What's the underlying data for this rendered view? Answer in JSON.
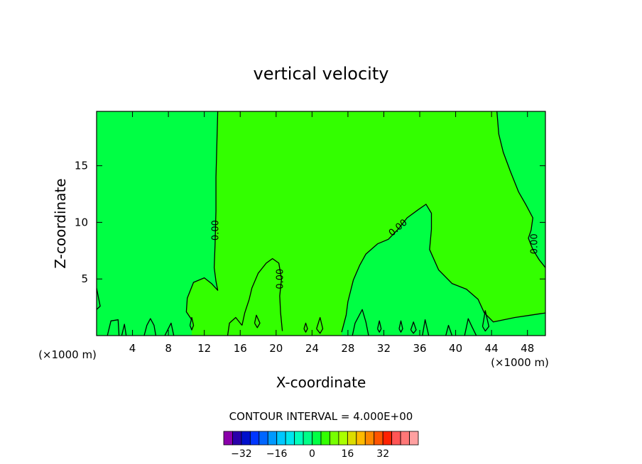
{
  "chart_data": {
    "type": "contour",
    "title": "vertical velocity",
    "xlabel": "X-coordinate",
    "ylabel": "Z-coordinate",
    "x_unit_left": "(×1000 m)",
    "x_unit_right": "(×1000 m)",
    "xlim": [
      0,
      50
    ],
    "ylim": [
      0,
      19.8
    ],
    "x_ticks": [
      4,
      8,
      12,
      16,
      20,
      24,
      28,
      32,
      36,
      40,
      44,
      48
    ],
    "y_ticks": [
      5,
      10,
      15
    ],
    "contour_label": "0.00",
    "contour_interval_text": "CONTOUR INTERVAL = 4.000E+00",
    "colors": {
      "positive_fill": "#33ff00",
      "negative_fill": "#00ff44",
      "contour_line": "#000000"
    },
    "zero_contours": [
      {
        "points": [
          [
            13.5,
            19.8
          ],
          [
            13.3,
            14
          ],
          [
            13.3,
            11
          ],
          [
            13.2,
            8
          ],
          [
            13.1,
            6
          ],
          [
            13.3,
            4.8
          ],
          [
            13.5,
            4.0
          ],
          [
            12.8,
            4.6
          ],
          [
            12.0,
            5.1
          ],
          [
            10.8,
            4.7
          ],
          [
            10.1,
            3.3
          ],
          [
            10.0,
            2.1
          ],
          [
            10.6,
            1.4
          ]
        ]
      },
      {
        "points": [
          [
            16.2,
            0.9
          ],
          [
            16.5,
            2.0
          ],
          [
            17.0,
            3.2
          ],
          [
            17.3,
            4.2
          ],
          [
            18.0,
            5.5
          ],
          [
            18.9,
            6.4
          ],
          [
            19.6,
            6.8
          ],
          [
            20.3,
            6.4
          ],
          [
            20.6,
            5.0
          ],
          [
            20.4,
            3.5
          ],
          [
            20.5,
            2.0
          ],
          [
            20.7,
            0.4
          ]
        ]
      },
      {
        "points": [
          [
            27.3,
            0.3
          ],
          [
            27.8,
            1.8
          ],
          [
            28.0,
            3.0
          ],
          [
            28.6,
            4.9
          ],
          [
            29.3,
            6.2
          ],
          [
            30.0,
            7.2
          ],
          [
            31.3,
            8.1
          ],
          [
            32.5,
            8.5
          ],
          [
            33.6,
            9.4
          ],
          [
            34.6,
            10.4
          ],
          [
            35.8,
            11.1
          ],
          [
            36.7,
            11.6
          ],
          [
            37.3,
            10.8
          ],
          [
            37.3,
            9.4
          ],
          [
            37.1,
            7.6
          ],
          [
            38.1,
            5.8
          ],
          [
            39.6,
            4.6
          ],
          [
            41.2,
            4.1
          ],
          [
            42.5,
            3.2
          ],
          [
            43.2,
            2.0
          ],
          [
            44.2,
            1.2
          ],
          [
            46.6,
            1.6
          ],
          [
            48.3,
            1.8
          ],
          [
            50.0,
            2.0
          ]
        ]
      },
      {
        "points": [
          [
            44.6,
            19.8
          ],
          [
            44.8,
            17.8
          ],
          [
            45.3,
            16.2
          ],
          [
            46.1,
            14.5
          ],
          [
            47.0,
            12.7
          ],
          [
            47.8,
            11.6
          ],
          [
            48.6,
            10.4
          ],
          [
            48.4,
            9.3
          ],
          [
            48.1,
            8.6
          ],
          [
            48.6,
            7.6
          ],
          [
            49.3,
            6.7
          ],
          [
            50.0,
            6.0
          ]
        ]
      },
      {
        "points": [
          [
            0.0,
            4.2
          ],
          [
            0.2,
            3.4
          ],
          [
            0.4,
            2.6
          ],
          [
            0.0,
            2.3
          ]
        ]
      },
      {
        "points": [
          [
            1.2,
            0
          ],
          [
            1.6,
            1.3
          ],
          [
            2.4,
            1.4
          ],
          [
            2.5,
            0
          ]
        ]
      },
      {
        "points": [
          [
            2.8,
            0
          ],
          [
            3.1,
            1.0
          ],
          [
            3.3,
            0
          ]
        ]
      },
      {
        "points": [
          [
            5.3,
            0
          ],
          [
            5.6,
            0.9
          ],
          [
            6.0,
            1.5
          ],
          [
            6.4,
            0.9
          ],
          [
            6.6,
            0
          ]
        ]
      },
      {
        "points": [
          [
            7.6,
            0
          ],
          [
            8.3,
            1.1
          ],
          [
            8.6,
            0
          ]
        ]
      },
      {
        "points": [
          [
            10.4,
            0.9
          ],
          [
            10.6,
            1.6
          ],
          [
            10.8,
            0.9
          ],
          [
            10.6,
            0.5
          ],
          [
            10.4,
            0.9
          ]
        ]
      },
      {
        "points": [
          [
            14.6,
            0
          ],
          [
            14.8,
            1.1
          ],
          [
            15.5,
            1.6
          ],
          [
            16.2,
            0.9
          ]
        ]
      },
      {
        "points": [
          [
            17.6,
            1.1
          ],
          [
            17.8,
            1.8
          ],
          [
            18.2,
            1.1
          ],
          [
            17.9,
            0.7
          ],
          [
            17.6,
            1.1
          ]
        ]
      },
      {
        "points": [
          [
            23.1,
            0.6
          ],
          [
            23.3,
            1.1
          ],
          [
            23.5,
            0.6
          ],
          [
            23.3,
            0.3
          ],
          [
            23.1,
            0.6
          ]
        ]
      },
      {
        "points": [
          [
            24.5,
            0.6
          ],
          [
            24.9,
            1.6
          ],
          [
            25.2,
            0.6
          ],
          [
            24.9,
            0.2
          ],
          [
            24.5,
            0.6
          ]
        ]
      },
      {
        "points": [
          [
            28.5,
            0
          ],
          [
            28.8,
            1.1
          ],
          [
            29.6,
            2.3
          ],
          [
            30.0,
            1.2
          ],
          [
            30.3,
            0
          ]
        ]
      },
      {
        "points": [
          [
            31.3,
            0.6
          ],
          [
            31.5,
            1.3
          ],
          [
            31.7,
            0.6
          ],
          [
            31.5,
            0.3
          ],
          [
            31.3,
            0.6
          ]
        ]
      },
      {
        "points": [
          [
            33.7,
            0.6
          ],
          [
            33.9,
            1.3
          ],
          [
            34.1,
            0.6
          ],
          [
            33.9,
            0.3
          ],
          [
            33.7,
            0.6
          ]
        ]
      },
      {
        "points": [
          [
            35.0,
            0.5
          ],
          [
            35.3,
            1.2
          ],
          [
            35.6,
            0.5
          ],
          [
            35.3,
            0.2
          ],
          [
            35.0,
            0.5
          ]
        ]
      },
      {
        "points": [
          [
            36.3,
            0
          ],
          [
            36.6,
            1.4
          ],
          [
            37.0,
            0
          ]
        ]
      },
      {
        "points": [
          [
            38.9,
            0
          ],
          [
            39.2,
            0.9
          ],
          [
            39.6,
            0
          ]
        ]
      },
      {
        "points": [
          [
            41.0,
            0
          ],
          [
            41.4,
            1.5
          ],
          [
            41.8,
            0.8
          ],
          [
            42.3,
            0
          ]
        ]
      },
      {
        "points": [
          [
            43.0,
            0.8
          ],
          [
            43.3,
            2.2
          ],
          [
            43.7,
            0.8
          ],
          [
            43.3,
            0.4
          ],
          [
            43.0,
            0.8
          ]
        ]
      }
    ],
    "contour_labels": [
      {
        "x": 13.3,
        "y": 9.3,
        "text": "0.00",
        "angle": -90
      },
      {
        "x": 20.5,
        "y": 5.0,
        "text": "0.00",
        "angle": -90
      },
      {
        "x": 33.6,
        "y": 9.5,
        "text": "0.00",
        "angle": -40
      },
      {
        "x": 48.8,
        "y": 8.1,
        "text": "0.00",
        "angle": -90
      }
    ],
    "colorbar": {
      "colors": [
        "#8a00aa",
        "#2a00aa",
        "#0010cc",
        "#0036ff",
        "#0066ff",
        "#0099ff",
        "#00c8ff",
        "#00e6ee",
        "#00ffbb",
        "#00ff88",
        "#00ff44",
        "#33ff00",
        "#77ff00",
        "#aaff00",
        "#dddd00",
        "#ffbb00",
        "#ff8800",
        "#ff5500",
        "#ff2200",
        "#ff5555",
        "#ff7777",
        "#ffa0a0"
      ],
      "tick_labels": [
        "−32",
        "−16",
        "0",
        "16",
        "32"
      ],
      "tick_values": [
        -32,
        -16,
        0,
        16,
        32
      ],
      "value_range": [
        -40,
        48
      ]
    }
  }
}
